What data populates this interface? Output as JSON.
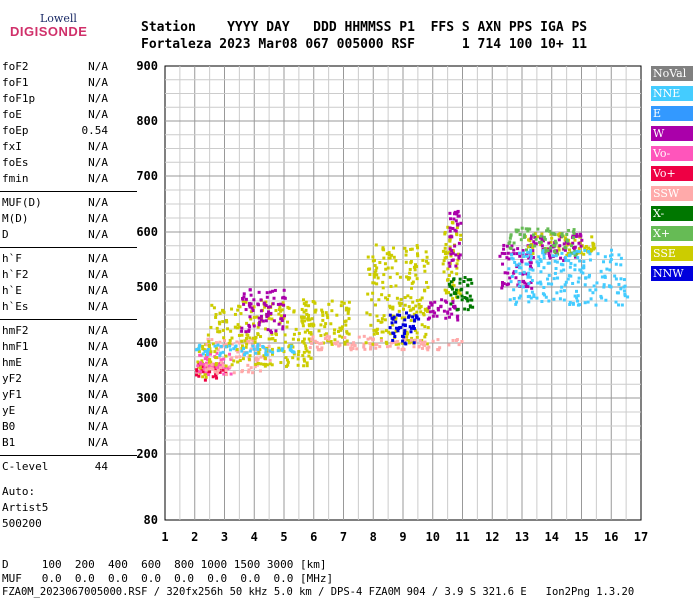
{
  "logo": {
    "top": "Lowell",
    "bottom": "DIGISONDE"
  },
  "header": {
    "line1": "Station    YYYY DAY   DDD HHMMSS P1  FFS S AXN PPS IGA PS",
    "line2": "Fortaleza 2023 Mar08 067 005000 RSF      1 714 100 10+ 11"
  },
  "params": [
    {
      "name": "foF2",
      "value": "N/A"
    },
    {
      "name": "foF1",
      "value": "N/A"
    },
    {
      "name": "foF1p",
      "value": "N/A"
    },
    {
      "name": "foE",
      "value": "N/A"
    },
    {
      "name": "foEp",
      "value": "0.54"
    },
    {
      "name": "fxI",
      "value": "N/A"
    },
    {
      "name": "foEs",
      "value": "N/A"
    },
    {
      "name": "fmin",
      "value": "N/A"
    },
    {
      "name": "MUF(D)",
      "value": "N/A"
    },
    {
      "name": "M(D)",
      "value": "N/A"
    },
    {
      "name": "D",
      "value": "N/A"
    },
    {
      "name": "h`F",
      "value": "N/A"
    },
    {
      "name": "h`F2",
      "value": "N/A"
    },
    {
      "name": "h`E",
      "value": "N/A"
    },
    {
      "name": "h`Es",
      "value": "N/A"
    },
    {
      "name": "hmF2",
      "value": "N/A"
    },
    {
      "name": "hmF1",
      "value": "N/A"
    },
    {
      "name": "hmE",
      "value": "N/A"
    },
    {
      "name": "yF2",
      "value": "N/A"
    },
    {
      "name": "yF1",
      "value": "N/A"
    },
    {
      "name": "yE",
      "value": "N/A"
    },
    {
      "name": "B0",
      "value": "N/A"
    },
    {
      "name": "B1",
      "value": "N/A"
    },
    {
      "name": "C-level",
      "value": "44"
    }
  ],
  "auto": {
    "line1": "Auto:",
    "line2": "Artist5",
    "line3": "500200"
  },
  "legend": [
    {
      "label": "NoVal",
      "color": "#808080"
    },
    {
      "label": "NNE",
      "color": "#44ccff"
    },
    {
      "label": "E",
      "color": "#3399ff"
    },
    {
      "label": "W",
      "color": "#aa00aa"
    },
    {
      "label": "Vo-",
      "color": "#ff55bb"
    },
    {
      "label": "Vo+",
      "color": "#ee0044"
    },
    {
      "label": "SSW",
      "color": "#ffaaaa"
    },
    {
      "label": "X-",
      "color": "#007700"
    },
    {
      "label": "X+",
      "color": "#66bb55"
    },
    {
      "label": "SSE",
      "color": "#cccc00"
    },
    {
      "label": "NNW",
      "color": "#0000dd"
    }
  ],
  "footer": {
    "line1": "D     100  200  400  600  800 1000 1500 3000 [km]",
    "line2": "MUF   0.0  0.0  0.0  0.0  0.0  0.0  0.0  0.0 [MHz]",
    "line3": "FZA0M_2023067005000.RSF / 320fx256h 50 kHz 5.0 km / DPS-4 FZA0M 904 / 3.9 S 321.6 E   Ion2Png 1.3.20"
  },
  "chart_data": {
    "type": "scatter",
    "xlabel": "",
    "ylabel": "",
    "xlim": [
      1,
      17
    ],
    "ylim": [
      80,
      900
    ],
    "xticks": [
      1,
      2,
      3,
      4,
      5,
      6,
      7,
      8,
      9,
      10,
      11,
      12,
      13,
      14,
      15,
      16,
      17
    ],
    "yticks": [
      80,
      200,
      300,
      400,
      500,
      600,
      700,
      800,
      900
    ],
    "grid": true,
    "clusters": [
      {
        "series": "SSE",
        "x": [
          2.0,
          2.5
        ],
        "y": [
          340,
          400
        ]
      },
      {
        "series": "Vo+",
        "x": [
          2.0,
          3.0
        ],
        "y": [
          335,
          365
        ]
      },
      {
        "series": "Vo-",
        "x": [
          2.0,
          3.2
        ],
        "y": [
          345,
          385
        ]
      },
      {
        "series": "SSW",
        "x": [
          2.3,
          4.5
        ],
        "y": [
          345,
          410
        ]
      },
      {
        "series": "SSE",
        "x": [
          2.4,
          6.0
        ],
        "y": [
          360,
          480
        ]
      },
      {
        "series": "W",
        "x": [
          3.5,
          5.0
        ],
        "y": [
          420,
          500
        ]
      },
      {
        "series": "NNE",
        "x": [
          2.0,
          5.5
        ],
        "y": [
          380,
          400
        ]
      },
      {
        "series": "SSE",
        "x": [
          5.5,
          7.2
        ],
        "y": [
          400,
          480
        ]
      },
      {
        "series": "SSW",
        "x": [
          5.8,
          8.0
        ],
        "y": [
          390,
          415
        ]
      },
      {
        "series": "SSE",
        "x": [
          7.7,
          9.8
        ],
        "y": [
          400,
          580
        ]
      },
      {
        "series": "SSW",
        "x": [
          7.8,
          11.0
        ],
        "y": [
          390,
          410
        ]
      },
      {
        "series": "NNW",
        "x": [
          8.5,
          9.5
        ],
        "y": [
          400,
          460
        ]
      },
      {
        "series": "W",
        "x": [
          9.8,
          10.8
        ],
        "y": [
          440,
          480
        ]
      },
      {
        "series": "SSE",
        "x": [
          10.3,
          10.9
        ],
        "y": [
          480,
          620
        ]
      },
      {
        "series": "W",
        "x": [
          10.5,
          10.9
        ],
        "y": [
          540,
          640
        ]
      },
      {
        "series": "X-",
        "x": [
          10.5,
          11.3
        ],
        "y": [
          460,
          520
        ]
      },
      {
        "series": "W",
        "x": [
          12.2,
          13.3
        ],
        "y": [
          500,
          580
        ]
      },
      {
        "series": "SSE",
        "x": [
          13.0,
          15.4
        ],
        "y": [
          560,
          600
        ]
      },
      {
        "series": "W",
        "x": [
          13.2,
          15.0
        ],
        "y": [
          550,
          600
        ]
      },
      {
        "series": "X+",
        "x": [
          12.5,
          14.8
        ],
        "y": [
          560,
          610
        ]
      },
      {
        "series": "NNE",
        "x": [
          12.5,
          16.5
        ],
        "y": [
          470,
          570
        ]
      }
    ]
  }
}
